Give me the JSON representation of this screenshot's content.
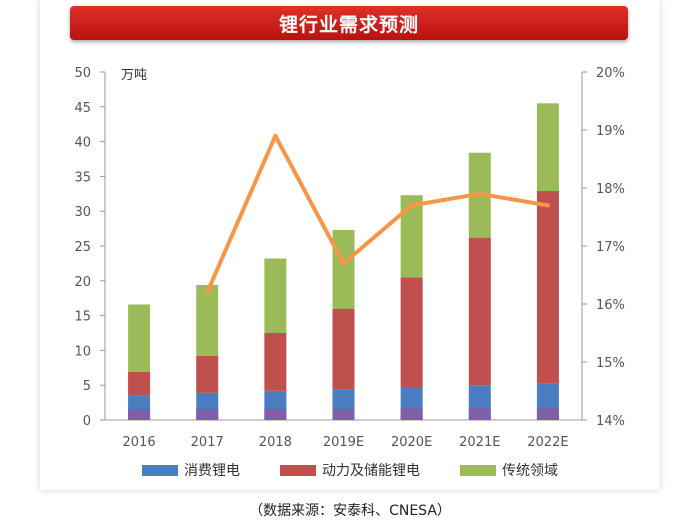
{
  "banner": {
    "title": "锂行业需求预测"
  },
  "source": "（数据来源：安泰科、CNESA）",
  "chart_data": {
    "type": "bar",
    "stacked": true,
    "categories": [
      "2016",
      "2017",
      "2018",
      "2019E",
      "2020E",
      "2021E",
      "2022E"
    ],
    "series": [
      {
        "name": "消费锂电",
        "color": "#4a7ec0",
        "values": [
          3.5,
          3.9,
          4.2,
          4.4,
          4.6,
          5.0,
          5.3
        ]
      },
      {
        "name": "动力及储能锂电",
        "color": "#c0504d",
        "values": [
          3.4,
          5.3,
          8.3,
          11.6,
          15.9,
          21.2,
          27.6
        ]
      },
      {
        "name": "传统领域",
        "color": "#9bbb59",
        "values": [
          9.7,
          10.2,
          10.7,
          11.3,
          11.8,
          12.2,
          12.6
        ]
      }
    ],
    "base_layer": {
      "color": "#7f5fa8",
      "values": [
        1.5,
        1.5,
        1.6,
        1.6,
        1.7,
        1.7,
        1.7
      ]
    },
    "line": {
      "color": "#f79646",
      "values": [
        16.2,
        18.9,
        16.7,
        17.7,
        17.9,
        17.7
      ],
      "categories": [
        "2017",
        "2018",
        "2019E",
        "2020E",
        "2021E",
        "2022E"
      ]
    },
    "y_left": {
      "unit": "万吨",
      "ticks": [
        "0",
        "5",
        "10",
        "15",
        "20",
        "25",
        "30",
        "35",
        "40",
        "45",
        "50"
      ],
      "ylim": [
        0,
        50
      ]
    },
    "y_right": {
      "ticks": [
        "14%",
        "15%",
        "16%",
        "17%",
        "18%",
        "19%",
        "20%"
      ],
      "ylim": [
        14,
        20
      ]
    },
    "legend_position": "bottom"
  }
}
